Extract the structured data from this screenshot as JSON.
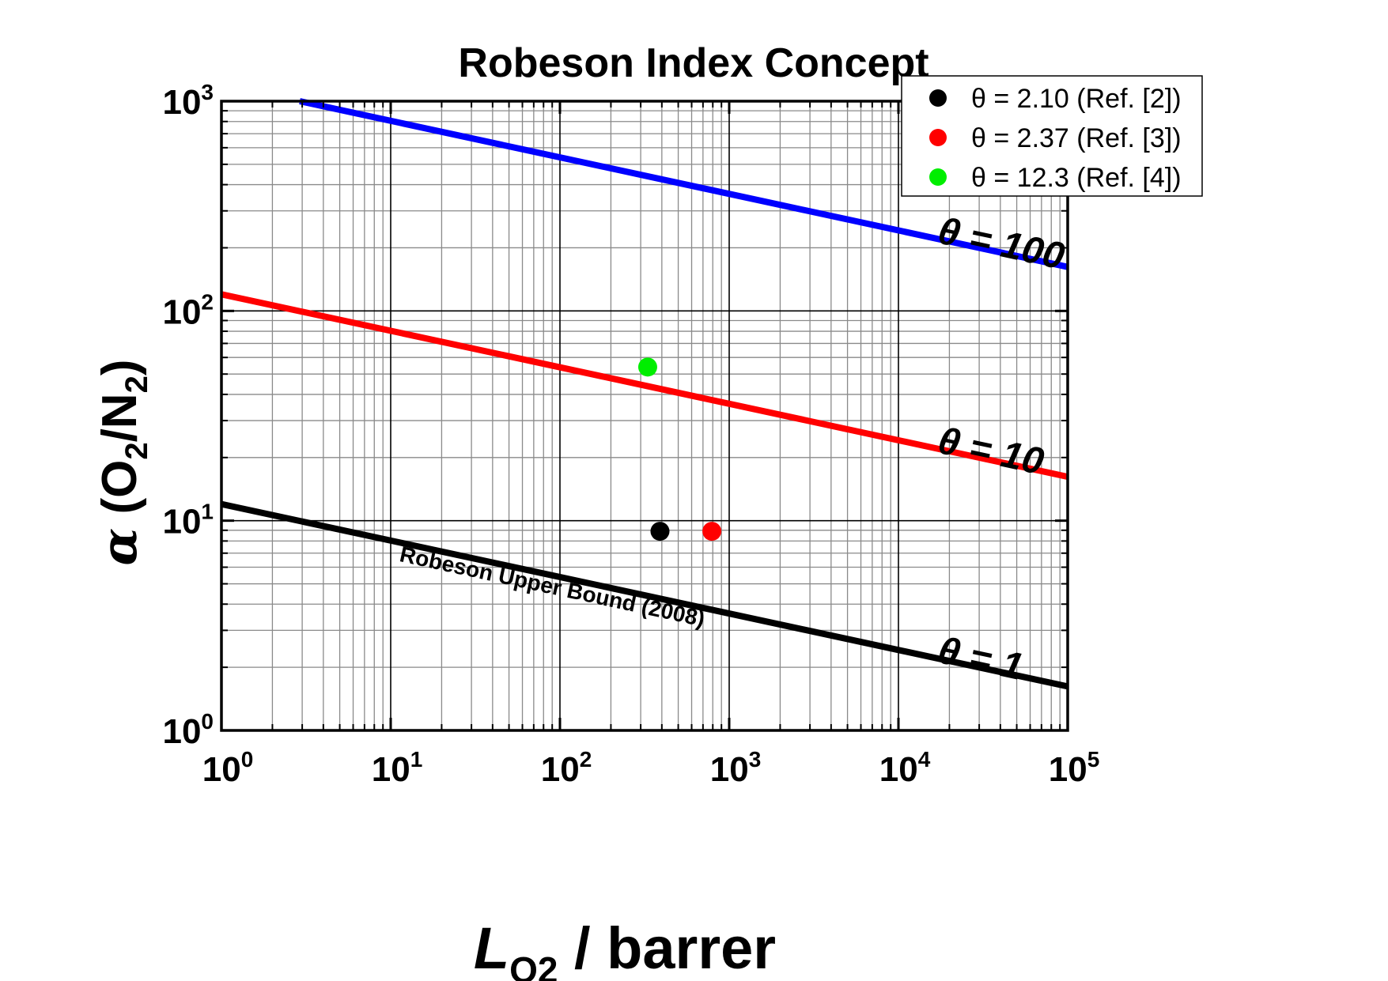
{
  "chart_data": {
    "type": "line",
    "title": "Robeson Index Concept",
    "xlabel": {
      "italic": "L",
      "sub": "O2",
      "rest": " / barrer"
    },
    "ylabel": {
      "symbol": "α",
      "open": " (O",
      "sub1": "2",
      "mid": "/N",
      "sub2": "2",
      "close": ")"
    },
    "x_scale": "log",
    "y_scale": "log",
    "xlim": [
      1,
      100000
    ],
    "ylim": [
      1,
      1000
    ],
    "x_ticks": [
      {
        "base": "10",
        "exp": "0",
        "value": 1
      },
      {
        "base": "10",
        "exp": "1",
        "value": 10
      },
      {
        "base": "10",
        "exp": "2",
        "value": 100
      },
      {
        "base": "10",
        "exp": "3",
        "value": 1000
      },
      {
        "base": "10",
        "exp": "4",
        "value": 10000
      },
      {
        "base": "10",
        "exp": "5",
        "value": 100000
      }
    ],
    "y_ticks": [
      {
        "base": "10",
        "exp": "0",
        "value": 1
      },
      {
        "base": "10",
        "exp": "1",
        "value": 10
      },
      {
        "base": "10",
        "exp": "2",
        "value": 100
      },
      {
        "base": "10",
        "exp": "3",
        "value": 1000
      }
    ],
    "grid": true,
    "lines": [
      {
        "label": "θ = 100",
        "color": "#0000ff",
        "x": [
          2.9,
          100000
        ],
        "y": [
          1000,
          162
        ]
      },
      {
        "label": "θ = 10",
        "color": "#ff0000",
        "x": [
          1,
          100000
        ],
        "y": [
          120,
          16.2
        ]
      },
      {
        "label": "θ = 1",
        "color": "#000000",
        "x": [
          1,
          100000
        ],
        "y": [
          12.0,
          1.62
        ]
      }
    ],
    "curve_annotation": "Robeson Upper Bound (2008)",
    "series": [
      {
        "name": "θ = 2.10 (Ref. [2])",
        "color": "#000000",
        "x": [
          390
        ],
        "y": [
          8.9
        ]
      },
      {
        "name": "θ = 2.37 (Ref. [3])",
        "color": "#ff0000",
        "x": [
          790
        ],
        "y": [
          8.9
        ]
      },
      {
        "name": "θ = 12.3 (Ref. [4])",
        "color": "#00ee00",
        "x": [
          330
        ],
        "y": [
          54
        ]
      }
    ],
    "legend_position": "top-right"
  }
}
